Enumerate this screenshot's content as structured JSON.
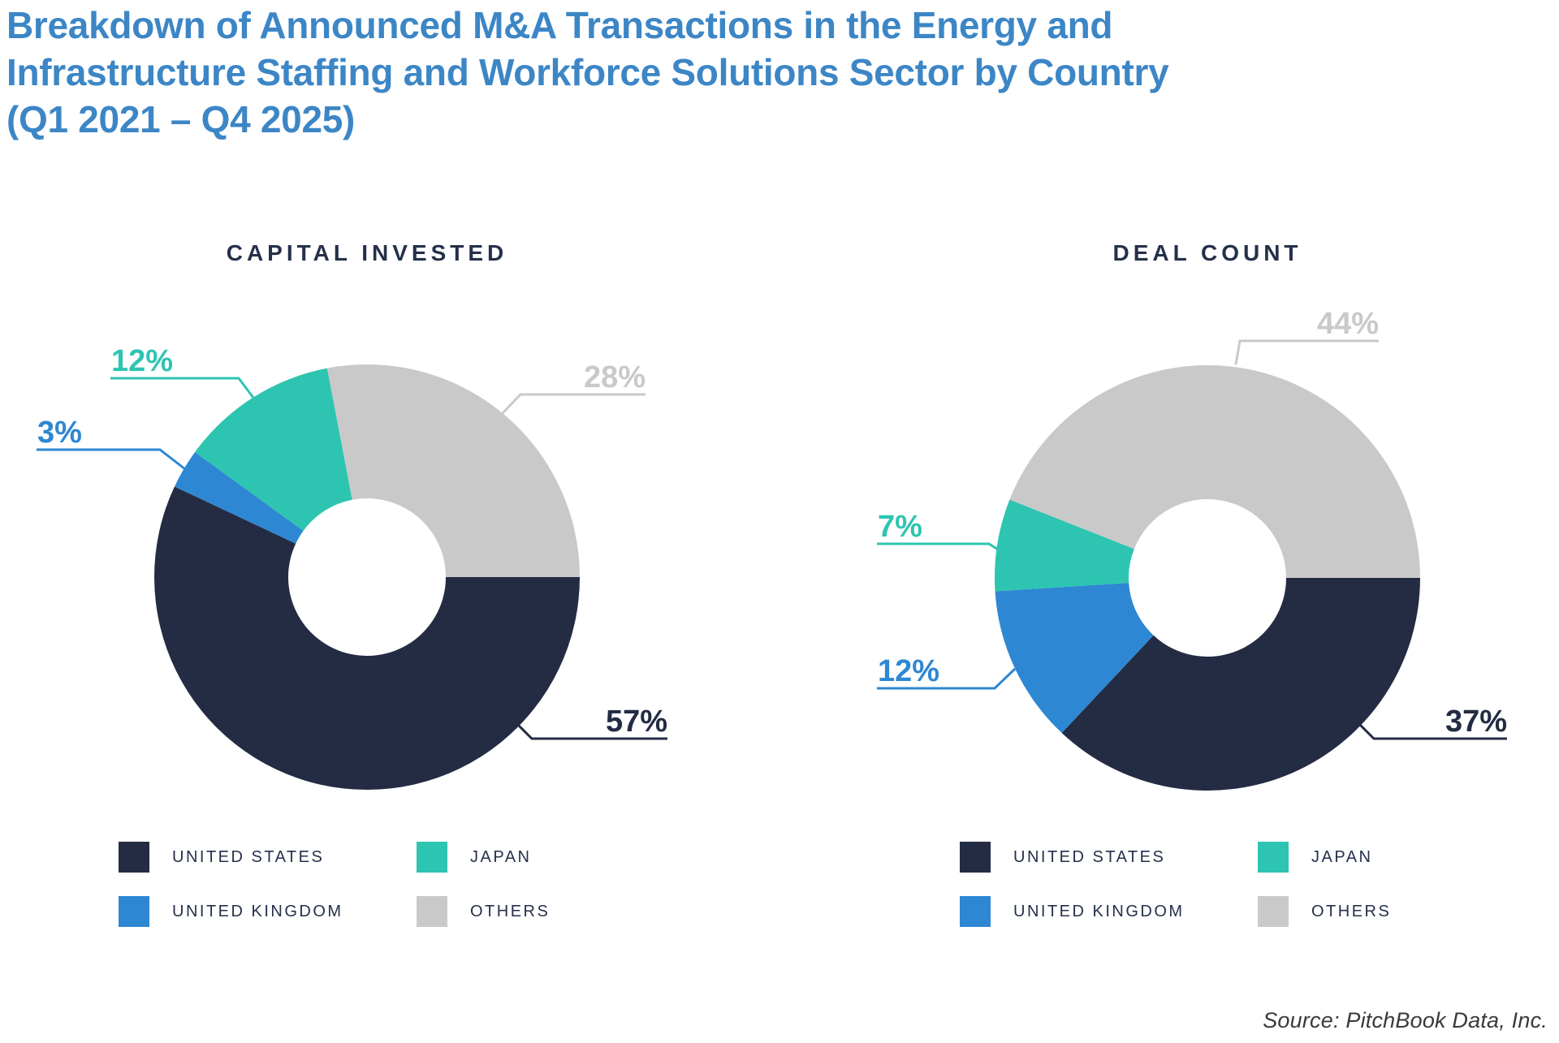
{
  "header": {
    "title_lines": [
      "Breakdown of Announced M&A Transactions in the Energy and",
      "Infrastructure Staffing and Workforce Solutions Sector by Country",
      "(Q1 2021 – Q4 2025)"
    ]
  },
  "chart_data": [
    {
      "type": "pie",
      "subtype": "donut",
      "title": "CAPITAL INVESTED",
      "unit": "%",
      "start_angle_deg": 90,
      "direction": "clockwise",
      "donut_hole_ratio": 0.37,
      "legend_position": "bottom",
      "slices": [
        {
          "name": "United States",
          "value": 57
        },
        {
          "name": "United Kingdom",
          "value": 3
        },
        {
          "name": "Japan",
          "value": 12
        },
        {
          "name": "Others",
          "value": 28
        }
      ]
    },
    {
      "type": "pie",
      "subtype": "donut",
      "title": "DEAL COUNT",
      "unit": "%",
      "start_angle_deg": 90,
      "direction": "clockwise",
      "donut_hole_ratio": 0.37,
      "legend_position": "bottom",
      "slices": [
        {
          "name": "United States",
          "value": 37
        },
        {
          "name": "United Kingdom",
          "value": 12
        },
        {
          "name": "Japan",
          "value": 7
        },
        {
          "name": "Others",
          "value": 44
        }
      ]
    }
  ],
  "legend": {
    "items": [
      {
        "label": "UNITED STATES",
        "series": "United States"
      },
      {
        "label": "JAPAN",
        "series": "Japan"
      },
      {
        "label": "UNITED KINGDOM",
        "series": "United Kingdom"
      },
      {
        "label": "OTHERS",
        "series": "Others"
      }
    ]
  },
  "colors": {
    "title_blue": "#3c86c6",
    "heading_navy": "#25304a",
    "series": {
      "United States": "#232c43",
      "United Kingdom": "#2e87d2",
      "Japan": "#2dc5b1",
      "Others": "#c9c9c9"
    }
  },
  "source": {
    "text": "Source: PitchBook Data, Inc."
  }
}
